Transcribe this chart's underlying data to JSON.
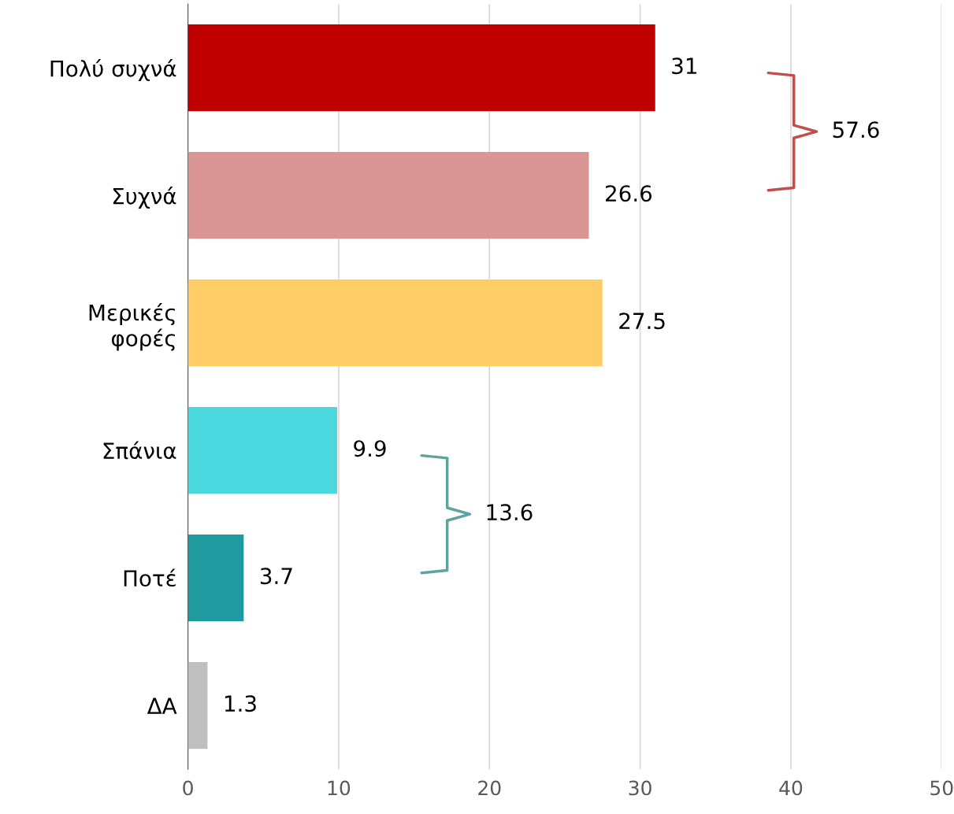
{
  "chart_data": {
    "type": "bar",
    "orientation": "horizontal",
    "categories": [
      "Πολύ συχνά",
      "Συχνά",
      "Μερικές\nφορές",
      "Σπάνια",
      "Ποτέ",
      "ΔΑ"
    ],
    "values": [
      31,
      26.6,
      27.5,
      9.9,
      3.7,
      1.3
    ],
    "colors": [
      "#c00000",
      "#da9694",
      "#ffcc66",
      "#4bd8de",
      "#1f9ba0",
      "#bfbfbf"
    ],
    "xlim": [
      0,
      50
    ],
    "xticks": [
      0,
      10,
      20,
      30,
      40,
      50
    ],
    "grid": "x",
    "data_labels": true,
    "legend": false,
    "annotations": [
      "57.6",
      "13.6"
    ]
  }
}
